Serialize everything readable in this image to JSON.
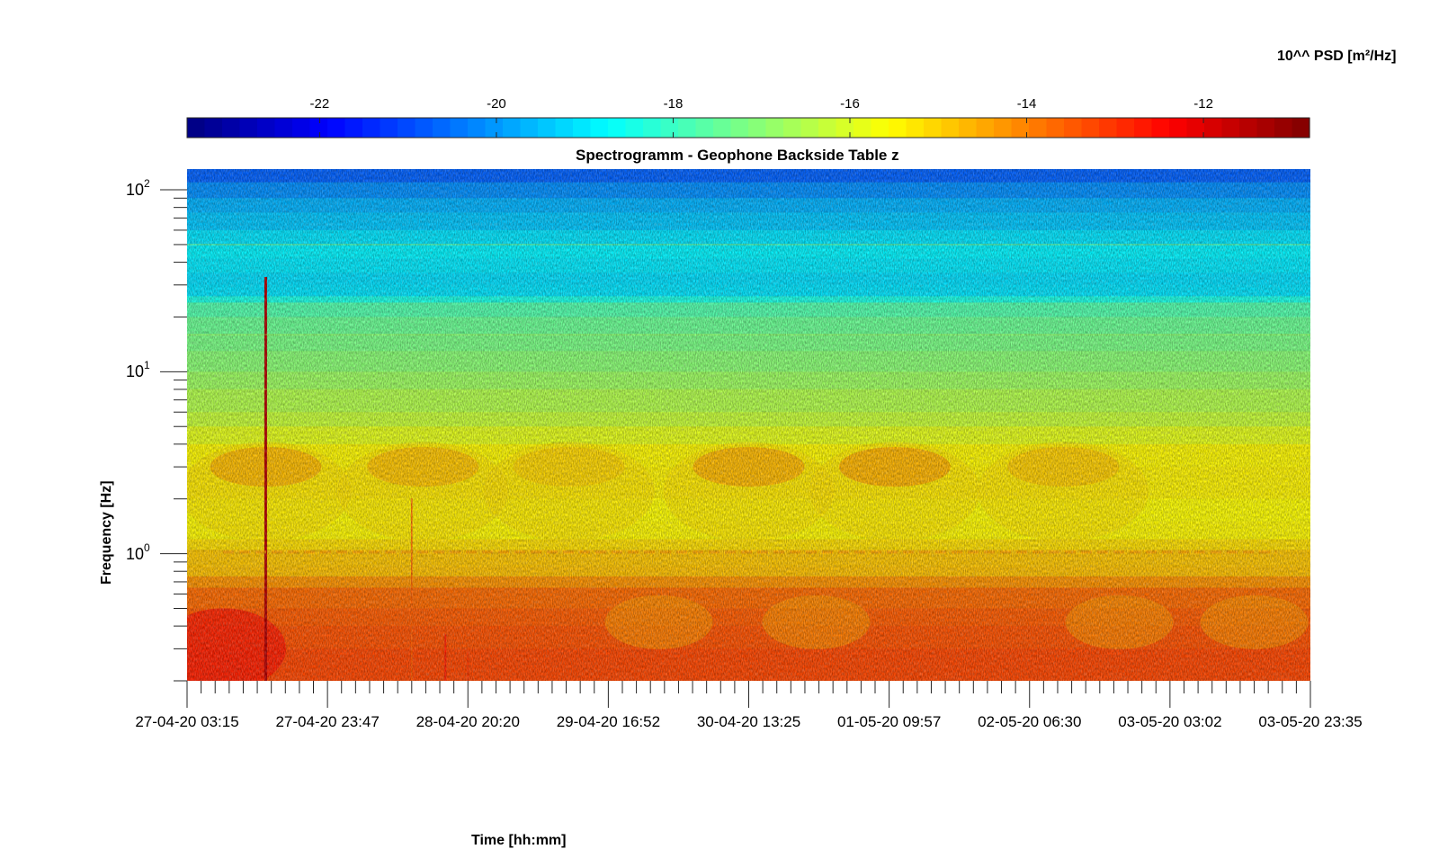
{
  "chart_data": {
    "type": "heatmap",
    "title": "Spectrogramm - Geophone Backside Table z",
    "xlabel": "Time [hh:mm]",
    "ylabel": "Frequency [Hz]",
    "x_ticks": [
      "27-04-20 03:15",
      "27-04-20 23:47",
      "28-04-20 20:20",
      "29-04-20 16:52",
      "30-04-20 13:25",
      "01-05-20 09:57",
      "02-05-20 06:30",
      "03-05-20 03:02",
      "03-05-20 23:35"
    ],
    "y_scale": "log",
    "y_ticks": [
      {
        "base": "10",
        "exp": "0",
        "value": 1
      },
      {
        "base": "10",
        "exp": "1",
        "value": 10
      },
      {
        "base": "10",
        "exp": "2",
        "value": 100
      }
    ],
    "ylim": [
      0.2,
      130
    ],
    "colorbar": {
      "label": "10^^ PSD [m²/Hz]",
      "ticks": [
        "-22",
        "-20",
        "-18",
        "-16",
        "-14",
        "-12"
      ],
      "tick_values": [
        -22,
        -20,
        -18,
        -16,
        -14,
        -12
      ],
      "range": [
        -23.5,
        -10.8
      ],
      "colormap": "jet",
      "orientation": "horizontal",
      "placement": "top"
    },
    "grid": false
  }
}
